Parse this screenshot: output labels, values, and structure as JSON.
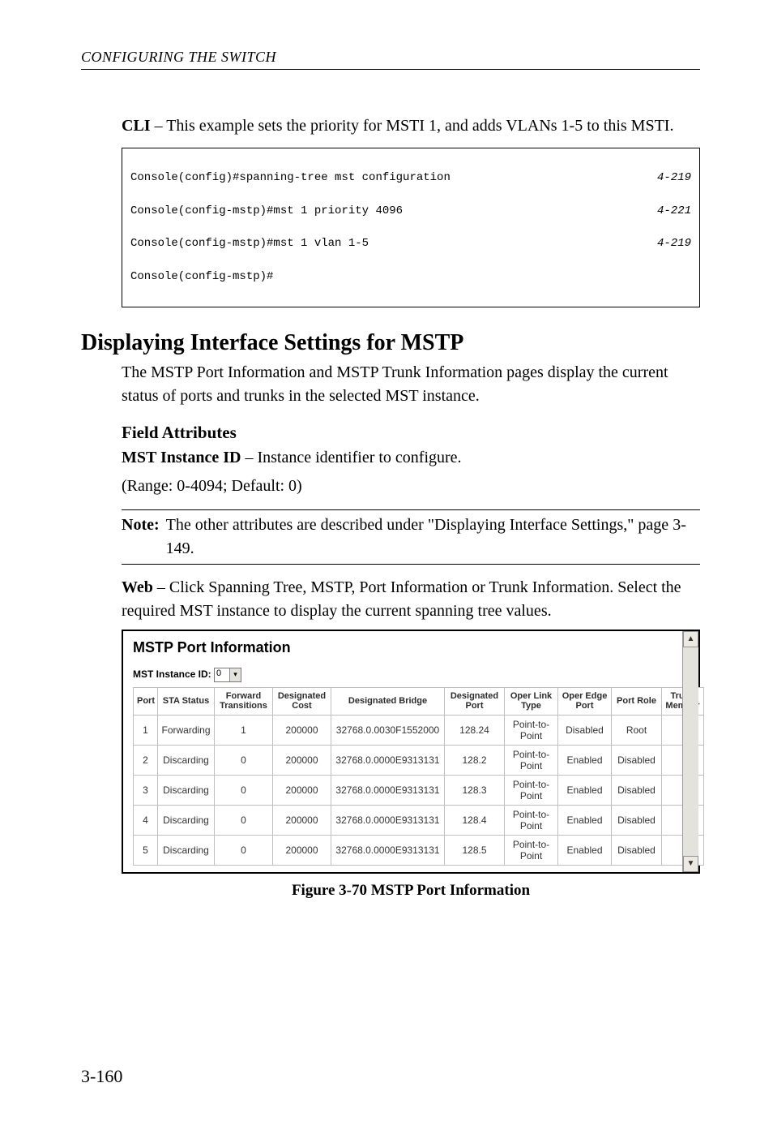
{
  "running_head": "CONFIGURING THE SWITCH",
  "cli_para": {
    "lead": "CLI",
    "rest": " – This example sets the priority for MSTI 1, and adds VLANs 1-5 to this MSTI."
  },
  "code_lines": [
    {
      "cmd": "Console(config)#spanning-tree mst configuration",
      "page": "4-219"
    },
    {
      "cmd": "Console(config-mstp)#mst 1 priority 4096",
      "page": "4-221"
    },
    {
      "cmd": "Console(config-mstp)#mst 1 vlan 1-5",
      "page": "4-219"
    },
    {
      "cmd": "Console(config-mstp)#",
      "page": ""
    }
  ],
  "section_title": "Displaying Interface Settings for MSTP",
  "section_para": "The MSTP Port Information and MSTP Trunk Information pages display the current status of ports and trunks in the selected MST instance.",
  "field_attr_heading": "Field Attributes",
  "mst_attr": {
    "lead": "MST Instance ID",
    "rest": " – Instance identifier to configure.",
    "range": "(Range: 0-4094; Default: 0)"
  },
  "note": {
    "label": "Note:",
    "text": "The other attributes are described under \"Displaying Interface Settings,\" page 3-149."
  },
  "web_para": {
    "lead": "Web",
    "rest": " – Click Spanning Tree, MSTP, Port Information or Trunk Information. Select the required MST instance to display the current spanning tree values."
  },
  "screenshot": {
    "title": "MSTP Port Information",
    "mst_label": "MST Instance ID: ",
    "mst_value": "0",
    "columns": [
      "Port",
      "STA Status",
      "Forward Transitions",
      "Designated Cost",
      "Designated Bridge",
      "Designated Port",
      "Oper Link Type",
      "Oper Edge Port",
      "Port Role",
      "Trunk Member"
    ],
    "col_widths": [
      "30",
      "70",
      "72",
      "72",
      "140",
      "74",
      "66",
      "66",
      "62",
      "52"
    ],
    "rows": [
      [
        "1",
        "Forwarding",
        "1",
        "200000",
        "32768.0.0030F1552000",
        "128.24",
        "Point-to-Point",
        "Disabled",
        "Root",
        ""
      ],
      [
        "2",
        "Discarding",
        "0",
        "200000",
        "32768.0.0000E9313131",
        "128.2",
        "Point-to-Point",
        "Enabled",
        "Disabled",
        ""
      ],
      [
        "3",
        "Discarding",
        "0",
        "200000",
        "32768.0.0000E9313131",
        "128.3",
        "Point-to-Point",
        "Enabled",
        "Disabled",
        ""
      ],
      [
        "4",
        "Discarding",
        "0",
        "200000",
        "32768.0.0000E9313131",
        "128.4",
        "Point-to-Point",
        "Enabled",
        "Disabled",
        ""
      ],
      [
        "5",
        "Discarding",
        "0",
        "200000",
        "32768.0.0000E9313131",
        "128.5",
        "Point-to-Point",
        "Enabled",
        "Disabled",
        ""
      ]
    ]
  },
  "scroll_up_glyph": "▲",
  "scroll_down_glyph": "▼",
  "figure_caption": "Figure 3-70  MSTP Port Information",
  "page_number": "3-160"
}
